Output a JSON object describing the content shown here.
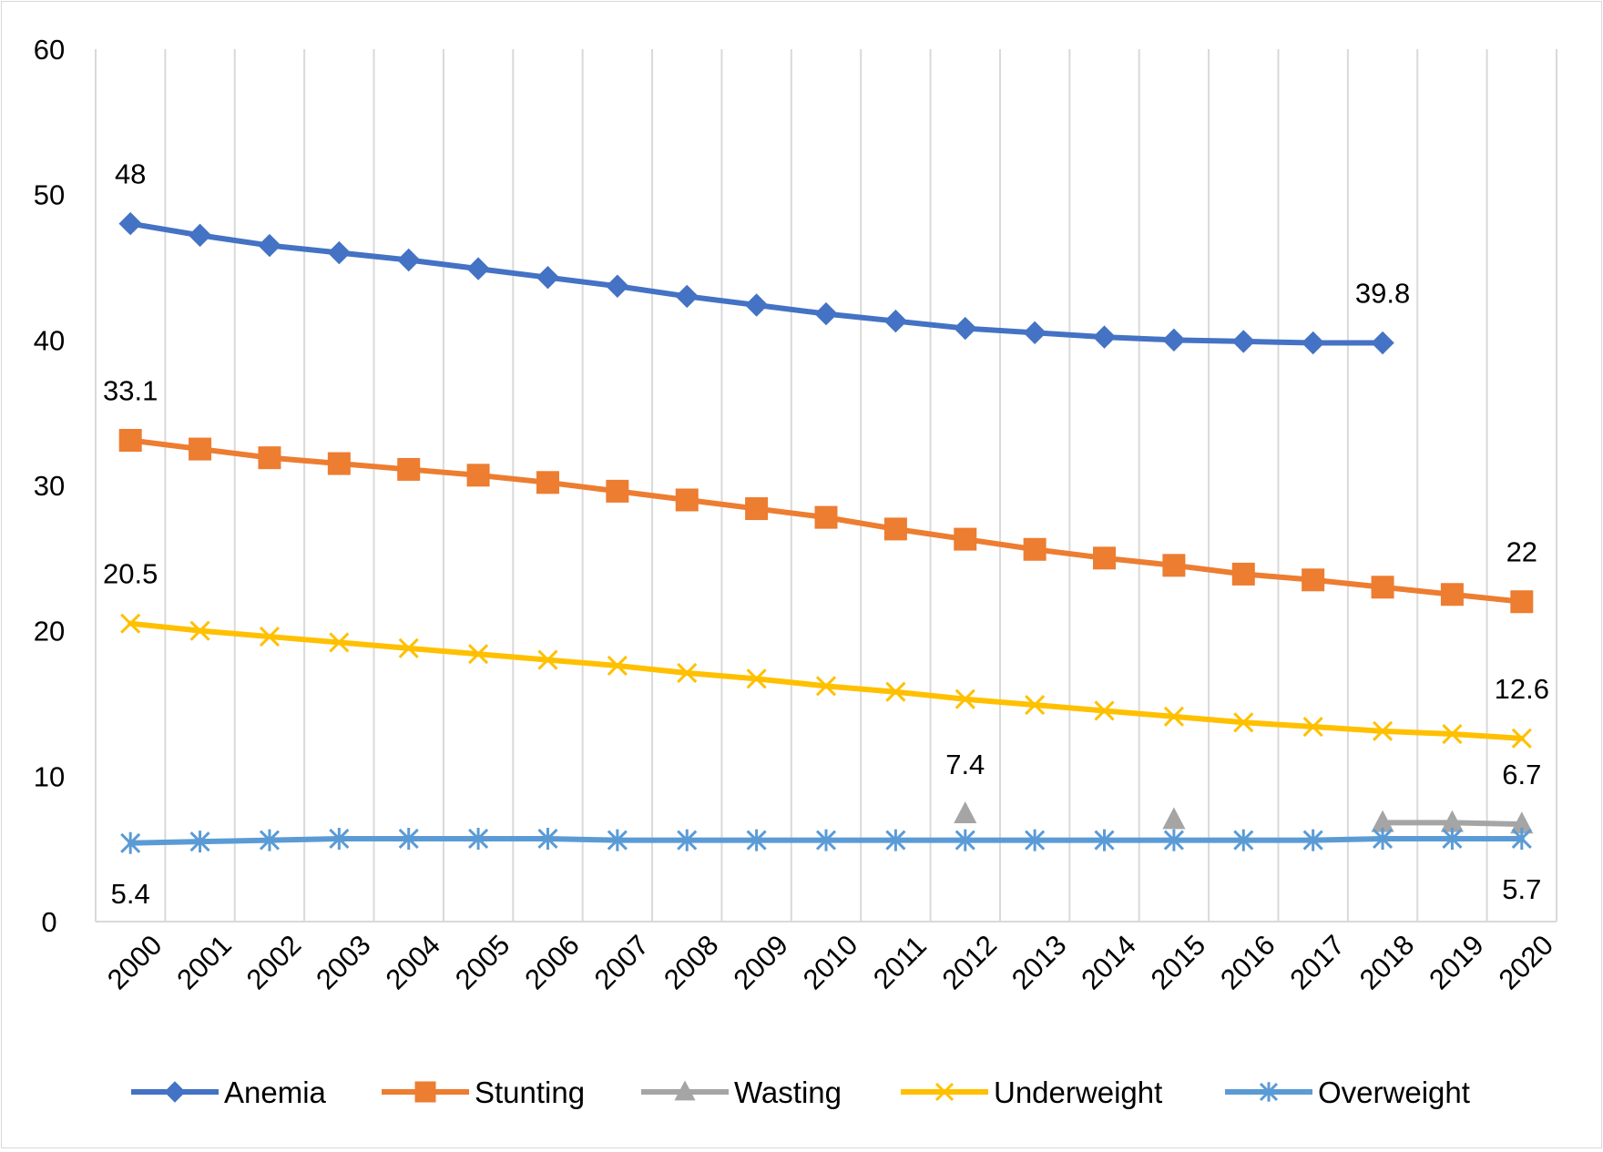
{
  "chart_data": {
    "type": "line",
    "title": "",
    "xlabel": "",
    "ylabel": "",
    "x": [
      "2000",
      "2001",
      "2002",
      "2003",
      "2004",
      "2005",
      "2006",
      "2007",
      "2008",
      "2009",
      "2010",
      "2011",
      "2012",
      "2013",
      "2014",
      "2015",
      "2016",
      "2017",
      "2018",
      "2019",
      "2020"
    ],
    "ylim": [
      0,
      60
    ],
    "yticks": [
      "0",
      "10",
      "20",
      "30",
      "40",
      "50",
      "60"
    ],
    "grid": "vertical",
    "legend_position": "bottom",
    "series": [
      {
        "name": "Anemia",
        "color": "#4472c4",
        "marker": "diamond",
        "values": [
          48,
          47.2,
          46.5,
          46,
          45.5,
          44.9,
          44.3,
          43.7,
          43,
          42.4,
          41.8,
          41.3,
          40.8,
          40.5,
          40.2,
          40,
          39.9,
          39.8,
          39.8,
          null,
          null
        ],
        "labels": [
          {
            "index": 0,
            "text": "48"
          },
          {
            "index": 18,
            "text": "39.8"
          }
        ]
      },
      {
        "name": "Stunting",
        "color": "#ed7d31",
        "marker": "square",
        "values": [
          33.1,
          32.5,
          31.9,
          31.5,
          31.1,
          30.7,
          30.2,
          29.6,
          29,
          28.4,
          27.8,
          27,
          26.3,
          25.6,
          25,
          24.5,
          23.9,
          23.5,
          23,
          22.5,
          22
        ],
        "labels": [
          {
            "index": 0,
            "text": "33.1"
          },
          {
            "index": 20,
            "text": "22"
          }
        ]
      },
      {
        "name": "Wasting",
        "color": "#a5a5a5",
        "marker": "triangle",
        "values": [
          null,
          null,
          null,
          null,
          null,
          null,
          null,
          null,
          null,
          null,
          null,
          null,
          7.4,
          null,
          null,
          7,
          null,
          null,
          6.8,
          6.8,
          6.7
        ],
        "labels": [
          {
            "index": 12,
            "text": "7.4"
          },
          {
            "index": 20,
            "text": "6.7"
          }
        ]
      },
      {
        "name": "Underweight",
        "color": "#ffc000",
        "marker": "x",
        "values": [
          20.5,
          20,
          19.6,
          19.2,
          18.8,
          18.4,
          18,
          17.6,
          17.1,
          16.7,
          16.2,
          15.8,
          15.3,
          14.9,
          14.5,
          14.1,
          13.7,
          13.4,
          13.1,
          12.9,
          12.6
        ],
        "labels": [
          {
            "index": 0,
            "text": "20.5"
          },
          {
            "index": 20,
            "text": "12.6"
          }
        ]
      },
      {
        "name": "Overweight",
        "color": "#5b9bd5",
        "marker": "asterisk",
        "values": [
          5.4,
          5.5,
          5.6,
          5.7,
          5.7,
          5.7,
          5.7,
          5.6,
          5.6,
          5.6,
          5.6,
          5.6,
          5.6,
          5.6,
          5.6,
          5.6,
          5.6,
          5.6,
          5.7,
          5.7,
          5.7
        ],
        "labels": [
          {
            "index": 0,
            "text": "5.4"
          },
          {
            "index": 20,
            "text": "5.7"
          }
        ]
      }
    ]
  }
}
